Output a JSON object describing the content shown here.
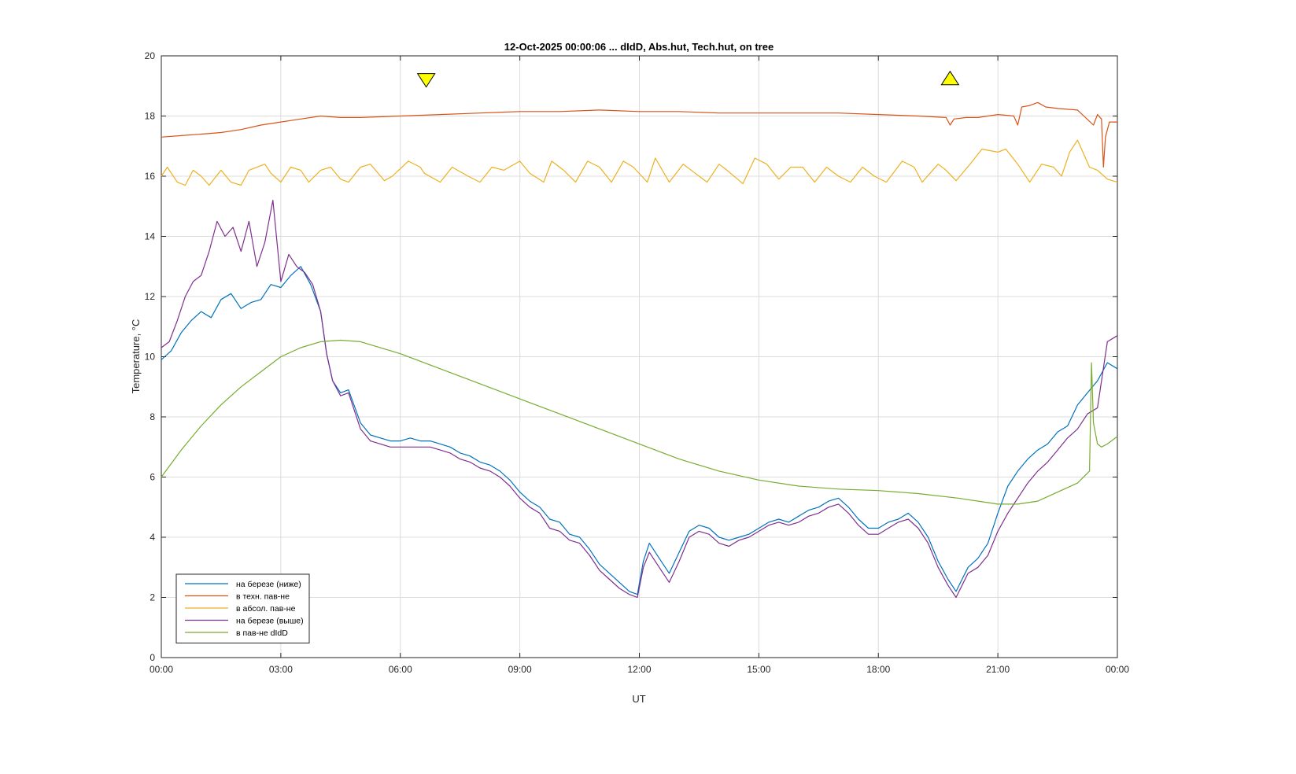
{
  "chart_data": {
    "type": "line",
    "title": "12-Oct-2025 00:00:06 ... dIdD, Abs.hut, Tech.hut, on tree",
    "xlabel": "UT",
    "ylabel": "Temperature, °C",
    "xlim": [
      0,
      24
    ],
    "ylim": [
      0,
      20
    ],
    "xticks": [
      0,
      3,
      6,
      9,
      12,
      15,
      18,
      21,
      24
    ],
    "xtick_labels": [
      "00:00",
      "03:00",
      "06:00",
      "09:00",
      "12:00",
      "15:00",
      "18:00",
      "21:00",
      "00:00"
    ],
    "yticks": [
      0,
      2,
      4,
      6,
      8,
      10,
      12,
      14,
      16,
      18,
      20
    ],
    "ytick_labels": [
      "0",
      "2",
      "4",
      "6",
      "8",
      "10",
      "12",
      "14",
      "16",
      "18",
      "20"
    ],
    "grid": true,
    "legend_position": "bottom-left",
    "markers": [
      {
        "shape": "triangle-down",
        "x": 6.65,
        "y": 19.2,
        "color": "#ffff00"
      },
      {
        "shape": "triangle-up",
        "x": 19.8,
        "y": 19.25,
        "color": "#ffff00"
      }
    ],
    "series": [
      {
        "name": "на березе (ниже)",
        "color": "#0072bd",
        "x": [
          0,
          0.25,
          0.5,
          0.75,
          1.0,
          1.25,
          1.5,
          1.75,
          2.0,
          2.25,
          2.5,
          2.75,
          3.0,
          3.25,
          3.5,
          3.75,
          4.0,
          4.15,
          4.3,
          4.5,
          4.7,
          5.0,
          5.25,
          5.5,
          5.75,
          6.0,
          6.25,
          6.5,
          6.75,
          7.0,
          7.25,
          7.5,
          7.75,
          8.0,
          8.25,
          8.5,
          8.75,
          9.0,
          9.25,
          9.5,
          9.75,
          10.0,
          10.25,
          10.5,
          10.75,
          11.0,
          11.25,
          11.5,
          11.75,
          11.95,
          12.1,
          12.25,
          12.5,
          12.75,
          13.0,
          13.25,
          13.5,
          13.75,
          14.0,
          14.25,
          14.5,
          14.75,
          15.0,
          15.25,
          15.5,
          15.75,
          16.0,
          16.25,
          16.5,
          16.75,
          17.0,
          17.25,
          17.5,
          17.75,
          18.0,
          18.25,
          18.5,
          18.75,
          19.0,
          19.25,
          19.5,
          19.75,
          19.95,
          20.1,
          20.25,
          20.5,
          20.75,
          21.0,
          21.25,
          21.5,
          21.75,
          22.0,
          22.25,
          22.5,
          22.75,
          23.0,
          23.25,
          23.5,
          23.75,
          24.0
        ],
        "values": [
          9.9,
          10.2,
          10.8,
          11.2,
          11.5,
          11.3,
          11.9,
          12.1,
          11.6,
          11.8,
          11.9,
          12.4,
          12.3,
          12.7,
          13.0,
          12.4,
          11.5,
          10.1,
          9.2,
          8.8,
          8.9,
          7.8,
          7.4,
          7.3,
          7.2,
          7.2,
          7.3,
          7.2,
          7.2,
          7.1,
          7.0,
          6.8,
          6.7,
          6.5,
          6.4,
          6.2,
          5.9,
          5.5,
          5.2,
          5.0,
          4.6,
          4.5,
          4.1,
          4.0,
          3.6,
          3.1,
          2.8,
          2.5,
          2.2,
          2.1,
          3.2,
          3.8,
          3.3,
          2.8,
          3.5,
          4.2,
          4.4,
          4.3,
          4.0,
          3.9,
          4.0,
          4.1,
          4.3,
          4.5,
          4.6,
          4.5,
          4.7,
          4.9,
          5.0,
          5.2,
          5.3,
          5.0,
          4.6,
          4.3,
          4.3,
          4.5,
          4.6,
          4.8,
          4.5,
          4.0,
          3.2,
          2.6,
          2.2,
          2.6,
          3.0,
          3.3,
          3.8,
          4.8,
          5.7,
          6.2,
          6.6,
          6.9,
          7.1,
          7.5,
          7.7,
          8.4,
          8.8,
          9.2,
          9.8,
          9.6
        ]
      },
      {
        "name": "в техн. пав-не",
        "color": "#d95319",
        "x": [
          0,
          0.5,
          1.0,
          1.5,
          2.0,
          2.5,
          3.0,
          3.5,
          4.0,
          4.5,
          5.0,
          6.0,
          7.0,
          8.0,
          9.0,
          10.0,
          11.0,
          12.0,
          13.0,
          14.0,
          15.0,
          16.0,
          17.0,
          18.0,
          19.0,
          19.7,
          19.8,
          19.9,
          20.2,
          20.5,
          21.0,
          21.4,
          21.5,
          21.6,
          21.8,
          22.0,
          22.2,
          22.5,
          23.0,
          23.4,
          23.5,
          23.6,
          23.65,
          23.7,
          23.8,
          24.0
        ],
        "values": [
          17.3,
          17.35,
          17.4,
          17.45,
          17.55,
          17.7,
          17.8,
          17.9,
          18.0,
          17.95,
          17.95,
          18.0,
          18.05,
          18.1,
          18.15,
          18.15,
          18.2,
          18.15,
          18.15,
          18.1,
          18.1,
          18.1,
          18.1,
          18.05,
          18.0,
          17.95,
          17.7,
          17.9,
          17.95,
          17.95,
          18.05,
          18.0,
          17.7,
          18.3,
          18.35,
          18.45,
          18.3,
          18.25,
          18.2,
          17.7,
          18.05,
          17.9,
          16.3,
          17.3,
          17.8,
          17.8
        ]
      },
      {
        "name": "в абсол. пав-не",
        "color": "#edb120",
        "x": [
          0,
          0.15,
          0.4,
          0.6,
          0.8,
          1.0,
          1.2,
          1.5,
          1.75,
          2.0,
          2.2,
          2.6,
          2.75,
          3.0,
          3.25,
          3.5,
          3.7,
          4.0,
          4.25,
          4.5,
          4.7,
          5.0,
          5.25,
          5.6,
          5.8,
          6.2,
          6.5,
          6.6,
          7.0,
          7.3,
          7.7,
          8.0,
          8.3,
          8.6,
          9.0,
          9.25,
          9.6,
          9.8,
          10.1,
          10.4,
          10.7,
          11.0,
          11.3,
          11.6,
          11.85,
          12.2,
          12.4,
          12.75,
          13.1,
          13.4,
          13.7,
          14.0,
          14.2,
          14.6,
          14.9,
          15.2,
          15.5,
          15.8,
          16.1,
          16.4,
          16.7,
          17.0,
          17.3,
          17.6,
          17.9,
          18.2,
          18.6,
          18.9,
          19.1,
          19.5,
          19.7,
          19.95,
          20.3,
          20.6,
          21.0,
          21.2,
          21.5,
          21.8,
          22.1,
          22.4,
          22.6,
          22.8,
          23.0,
          23.3,
          23.5,
          23.75,
          24.0
        ],
        "values": [
          16.0,
          16.3,
          15.8,
          15.7,
          16.2,
          16.0,
          15.7,
          16.2,
          15.8,
          15.7,
          16.2,
          16.4,
          16.1,
          15.8,
          16.3,
          16.2,
          15.8,
          16.2,
          16.3,
          15.9,
          15.8,
          16.3,
          16.4,
          15.85,
          16.0,
          16.5,
          16.3,
          16.1,
          15.8,
          16.3,
          16.0,
          15.8,
          16.3,
          16.2,
          16.5,
          16.1,
          15.8,
          16.5,
          16.2,
          15.8,
          16.5,
          16.3,
          15.8,
          16.5,
          16.3,
          15.8,
          16.6,
          15.8,
          16.4,
          16.1,
          15.8,
          16.4,
          16.2,
          15.75,
          16.6,
          16.4,
          15.9,
          16.3,
          16.3,
          15.8,
          16.3,
          16.0,
          15.8,
          16.3,
          16.0,
          15.8,
          16.5,
          16.3,
          15.8,
          16.4,
          16.2,
          15.85,
          16.4,
          16.9,
          16.8,
          16.9,
          16.4,
          15.8,
          16.4,
          16.3,
          16.0,
          16.8,
          17.2,
          16.3,
          16.2,
          15.9,
          15.8
        ]
      },
      {
        "name": "на березе (выше)",
        "color": "#7e2f8e",
        "x": [
          0,
          0.2,
          0.4,
          0.6,
          0.8,
          1.0,
          1.2,
          1.4,
          1.6,
          1.8,
          2.0,
          2.2,
          2.4,
          2.6,
          2.8,
          3.0,
          3.2,
          3.4,
          3.6,
          3.8,
          4.0,
          4.15,
          4.3,
          4.5,
          4.7,
          5.0,
          5.25,
          5.5,
          5.75,
          6.0,
          6.25,
          6.5,
          6.75,
          7.0,
          7.25,
          7.5,
          7.75,
          8.0,
          8.25,
          8.5,
          8.75,
          9.0,
          9.25,
          9.5,
          9.75,
          10.0,
          10.25,
          10.5,
          10.75,
          11.0,
          11.25,
          11.5,
          11.75,
          11.95,
          12.1,
          12.25,
          12.5,
          12.75,
          13.0,
          13.25,
          13.5,
          13.75,
          14.0,
          14.25,
          14.5,
          14.75,
          15.0,
          15.25,
          15.5,
          15.75,
          16.0,
          16.25,
          16.5,
          16.75,
          17.0,
          17.25,
          17.5,
          17.75,
          18.0,
          18.25,
          18.5,
          18.75,
          19.0,
          19.25,
          19.5,
          19.75,
          19.95,
          20.1,
          20.25,
          20.5,
          20.75,
          21.0,
          21.25,
          21.5,
          21.75,
          22.0,
          22.25,
          22.5,
          22.75,
          23.0,
          23.25,
          23.5,
          23.75,
          24.0
        ],
        "values": [
          10.3,
          10.5,
          11.2,
          12.0,
          12.5,
          12.7,
          13.5,
          14.5,
          14.0,
          14.3,
          13.5,
          14.5,
          13.0,
          13.8,
          15.2,
          12.5,
          13.4,
          13.0,
          12.8,
          12.4,
          11.5,
          10.1,
          9.2,
          8.7,
          8.8,
          7.6,
          7.2,
          7.1,
          7.0,
          7.0,
          7.0,
          7.0,
          7.0,
          6.9,
          6.8,
          6.6,
          6.5,
          6.3,
          6.2,
          6.0,
          5.7,
          5.3,
          5.0,
          4.8,
          4.3,
          4.2,
          3.9,
          3.8,
          3.4,
          2.9,
          2.6,
          2.3,
          2.1,
          2.0,
          3.0,
          3.5,
          3.0,
          2.5,
          3.2,
          4.0,
          4.2,
          4.1,
          3.8,
          3.7,
          3.9,
          4.0,
          4.2,
          4.4,
          4.5,
          4.4,
          4.5,
          4.7,
          4.8,
          5.0,
          5.1,
          4.8,
          4.4,
          4.1,
          4.1,
          4.3,
          4.5,
          4.6,
          4.3,
          3.8,
          3.0,
          2.4,
          2.0,
          2.4,
          2.8,
          3.0,
          3.4,
          4.2,
          4.8,
          5.3,
          5.8,
          6.2,
          6.5,
          6.9,
          7.3,
          7.6,
          8.1,
          8.3,
          10.5,
          10.7
        ]
      },
      {
        "name": "в пав-не dIdD",
        "color": "#77ac30",
        "x": [
          0,
          0.5,
          1.0,
          1.5,
          2.0,
          2.5,
          3.0,
          3.5,
          4.0,
          4.5,
          5.0,
          6.0,
          7.0,
          8.0,
          9.0,
          10.0,
          11.0,
          12.0,
          13.0,
          14.0,
          15.0,
          16.0,
          17.0,
          18.0,
          19.0,
          20.0,
          21.0,
          21.5,
          22.0,
          22.5,
          23.0,
          23.3,
          23.35,
          23.4,
          23.5,
          23.6,
          23.75,
          24.0
        ],
        "values": [
          6.0,
          6.9,
          7.7,
          8.4,
          9.0,
          9.5,
          10.0,
          10.3,
          10.5,
          10.55,
          10.5,
          10.1,
          9.6,
          9.1,
          8.6,
          8.1,
          7.6,
          7.1,
          6.6,
          6.2,
          5.9,
          5.7,
          5.6,
          5.55,
          5.45,
          5.3,
          5.1,
          5.1,
          5.2,
          5.5,
          5.8,
          6.2,
          9.8,
          7.8,
          7.1,
          7.0,
          7.1,
          7.35
        ]
      }
    ]
  }
}
